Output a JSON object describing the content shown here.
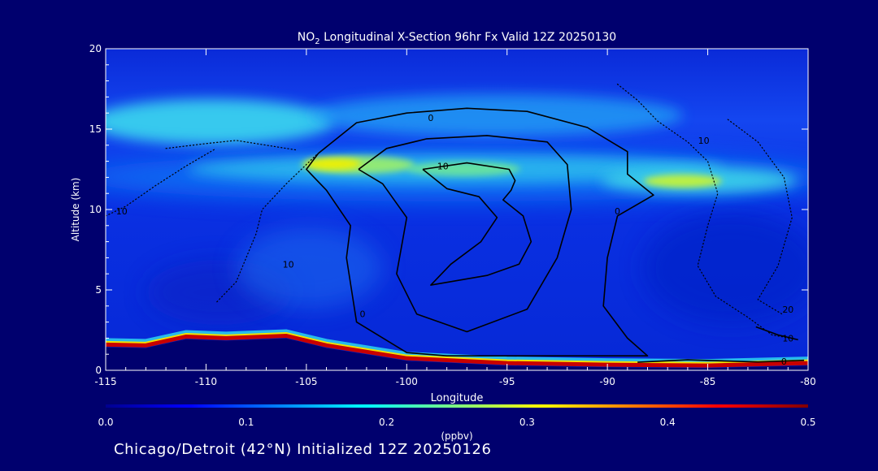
{
  "chart_data": {
    "type": "heatmap",
    "title_parts": [
      "NO",
      "2",
      " Longitudinal X-Section 96hr  Fx Valid 12Z 20250130"
    ],
    "xlabel": "Longitude",
    "ylabel": "Altitude (km)",
    "xlim": [
      -115,
      -80
    ],
    "ylim": [
      0,
      20
    ],
    "x_ticks": [
      -115,
      -110,
      -105,
      -100,
      -95,
      -90,
      -85,
      -80
    ],
    "y_ticks": [
      0,
      5,
      10,
      15,
      20
    ],
    "colorbar": {
      "label": "(ppbv)",
      "min": 0.0,
      "max": 0.5,
      "ticks": [
        "0.0",
        "0.1",
        "0.2",
        "0.3",
        "0.4",
        "0.5"
      ],
      "colormap": "jet"
    },
    "colors": {
      "background": "#00006e",
      "field_base": "#0a28dc",
      "upper_band": "#38e0f0",
      "band_peak": "#f0f000",
      "surface": "#c80000",
      "contour": "#000000"
    },
    "no2_maxima": [
      {
        "lon": -103.5,
        "alt": 12.9,
        "ppbv": 0.3
      },
      {
        "lon": -86,
        "alt": 11.7,
        "ppbv": 0.28
      },
      {
        "lon": -97,
        "alt": 12.3,
        "ppbv": 0.25
      },
      {
        "lon": -112,
        "alt": 15.5,
        "ppbv": 0.18
      }
    ],
    "terrain": [
      {
        "lon": -115,
        "alt": 1.75
      },
      {
        "lon": -113,
        "alt": 1.7
      },
      {
        "lon": -111,
        "alt": 2.25
      },
      {
        "lon": -109,
        "alt": 2.15
      },
      {
        "lon": -106,
        "alt": 2.3
      },
      {
        "lon": -104,
        "alt": 1.7
      },
      {
        "lon": -100,
        "alt": 0.9
      },
      {
        "lon": -95,
        "alt": 0.6
      },
      {
        "lon": -90,
        "alt": 0.5
      },
      {
        "lon": -85,
        "alt": 0.45
      },
      {
        "lon": -80,
        "alt": 0.6
      }
    ],
    "contours": [
      {
        "value": "0",
        "style": "solid",
        "points": [
          [
            -104.4,
            13.5
          ],
          [
            -102.5,
            15.4
          ],
          [
            -100,
            16.0
          ],
          [
            -97,
            16.3
          ],
          [
            -94,
            16.1
          ],
          [
            -91,
            15.1
          ],
          [
            -89,
            13.6
          ],
          [
            -89,
            12.2
          ],
          [
            -87.7,
            10.9
          ],
          [
            -89.5,
            9.6
          ],
          [
            -90,
            7.0
          ],
          [
            -90.2,
            4.0
          ],
          [
            -89,
            2.0
          ],
          [
            -88,
            0.9
          ],
          [
            -98,
            0.9
          ],
          [
            -100,
            1.1
          ],
          [
            -102.5,
            3.0
          ],
          [
            -103,
            7.0
          ],
          [
            -102.8,
            9.0
          ],
          [
            -104,
            11.2
          ],
          [
            -105,
            12.5
          ],
          [
            -104.4,
            13.5
          ]
        ]
      },
      {
        "value": "0",
        "style": "solid",
        "points": [
          [
            -102.4,
            12.5
          ],
          [
            -101,
            13.8
          ],
          [
            -99,
            14.4
          ],
          [
            -96,
            14.6
          ],
          [
            -93,
            14.2
          ],
          [
            -92,
            12.8
          ],
          [
            -91.8,
            10.0
          ],
          [
            -92.5,
            7.0
          ],
          [
            -94,
            3.8
          ],
          [
            -97,
            2.4
          ],
          [
            -99.5,
            3.5
          ],
          [
            -100.5,
            6.0
          ],
          [
            -100,
            9.5
          ],
          [
            -101.2,
            11.6
          ],
          [
            -102.4,
            12.5
          ]
        ]
      },
      {
        "value": "10",
        "style": "solid",
        "points": [
          [
            -99.2,
            12.5
          ],
          [
            -97,
            12.9
          ],
          [
            -94.9,
            12.5
          ],
          [
            -94.6,
            11.8
          ],
          [
            -94.8,
            11.2
          ],
          [
            -95.2,
            10.6
          ],
          [
            -94.2,
            9.6
          ],
          [
            -93.8,
            8.0
          ],
          [
            -94.4,
            6.6
          ],
          [
            -96,
            5.9
          ],
          [
            -98.8,
            5.3
          ],
          [
            -97.8,
            6.6
          ],
          [
            -96.3,
            8.0
          ],
          [
            -95.5,
            9.5
          ],
          [
            -96.4,
            10.8
          ],
          [
            -98,
            11.3
          ],
          [
            -99.2,
            12.5
          ]
        ]
      },
      {
        "value": "10",
        "style": "dotted",
        "points": [
          [
            -112,
            13.8
          ],
          [
            -110,
            14.1
          ],
          [
            -108.5,
            14.3
          ],
          [
            -107,
            14.0
          ],
          [
            -105.5,
            13.7
          ]
        ]
      },
      {
        "value": "10",
        "style": "dotted",
        "points": [
          [
            -115,
            9.6
          ],
          [
            -114,
            10.2
          ],
          [
            -112.5,
            11.5
          ],
          [
            -111,
            12.7
          ],
          [
            -109.5,
            13.8
          ]
        ]
      },
      {
        "value": "0",
        "style": "dotted",
        "points": [
          [
            -104.5,
            13.4
          ],
          [
            -106,
            11.6
          ],
          [
            -107.2,
            10.0
          ],
          [
            -107.5,
            8.5
          ],
          [
            -108,
            7.0
          ],
          [
            -108.5,
            5.5
          ],
          [
            -109.5,
            4.2
          ]
        ]
      },
      {
        "value": "10",
        "style": "dotted",
        "points": [
          [
            -89.5,
            17.8
          ],
          [
            -88.5,
            16.8
          ],
          [
            -87.5,
            15.5
          ],
          [
            -86,
            14.2
          ],
          [
            -85,
            13.0
          ],
          [
            -84.5,
            11.0
          ],
          [
            -85,
            9.0
          ],
          [
            -85.5,
            6.5
          ],
          [
            -84.6,
            4.6
          ],
          [
            -83,
            3.3
          ],
          [
            -81.8,
            2.2
          ],
          [
            -80.5,
            1.9
          ]
        ]
      },
      {
        "value": "20",
        "style": "dotted",
        "points": [
          [
            -84,
            15.6
          ],
          [
            -82.5,
            14.2
          ],
          [
            -81.2,
            12.0
          ],
          [
            -80.8,
            9.5
          ],
          [
            -81.5,
            6.5
          ],
          [
            -82.5,
            4.4
          ],
          [
            -81.3,
            3.5
          ]
        ]
      },
      {
        "value": "10",
        "style": "solid",
        "points": [
          [
            -82.6,
            2.7
          ],
          [
            -81.5,
            2.2
          ],
          [
            -80.5,
            1.9
          ]
        ]
      },
      {
        "value": "0",
        "style": "solid",
        "points": [
          [
            -88.5,
            0.5
          ],
          [
            -86,
            0.65
          ],
          [
            -82.5,
            0.52
          ],
          [
            -80.2,
            0.62
          ]
        ]
      }
    ],
    "contour_labels": [
      {
        "text": "0",
        "lon": -98.8,
        "alt": 15.7
      },
      {
        "text": "10",
        "lon": -98.2,
        "alt": 12.7
      },
      {
        "text": "0",
        "lon": -89.5,
        "alt": 9.9
      },
      {
        "text": "10",
        "lon": -85.2,
        "alt": 14.3
      },
      {
        "text": "10",
        "lon": -114.2,
        "alt": 9.9
      },
      {
        "text": "10",
        "lon": -105.9,
        "alt": 6.6
      },
      {
        "text": "0",
        "lon": -102.2,
        "alt": 3.5
      },
      {
        "text": "20",
        "lon": -81.0,
        "alt": 3.8
      },
      {
        "text": "10",
        "lon": -81.0,
        "alt": 2.0
      },
      {
        "text": "0",
        "lon": -81.2,
        "alt": 0.55
      }
    ]
  },
  "caption": "Chicago/Detroit (42°N) Initialized 12Z 20250126"
}
